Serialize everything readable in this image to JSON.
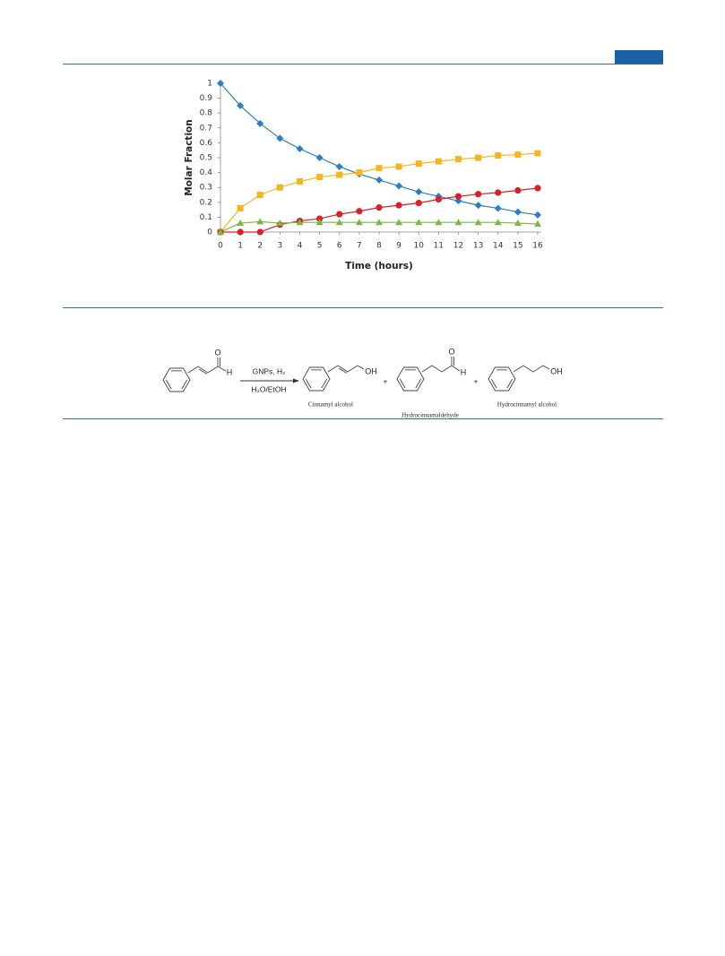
{
  "chart_data": {
    "type": "line",
    "x_label": "Time (hours)",
    "y_label": "Molar Fraction",
    "x": [
      0,
      1,
      2,
      3,
      4,
      5,
      6,
      7,
      8,
      9,
      10,
      11,
      12,
      13,
      14,
      15,
      16
    ],
    "series": [
      {
        "color": "#2a7fc1",
        "marker": "diamond",
        "values": [
          1,
          0.85,
          0.73,
          0.63,
          0.56,
          0.5,
          0.44,
          0.39,
          0.35,
          0.31,
          0.27,
          0.24,
          0.21,
          0.18,
          0.16,
          0.135,
          0.115
        ]
      },
      {
        "color": "#f7b51c",
        "marker": "square",
        "values": [
          0,
          0.16,
          0.25,
          0.3,
          0.34,
          0.37,
          0.385,
          0.4,
          0.43,
          0.44,
          0.46,
          0.475,
          0.49,
          0.5,
          0.515,
          0.52,
          0.53
        ]
      },
      {
        "color": "#d92027",
        "marker": "circle",
        "values": [
          0,
          0,
          0,
          0.05,
          0.075,
          0.09,
          0.12,
          0.14,
          0.165,
          0.18,
          0.195,
          0.22,
          0.24,
          0.255,
          0.265,
          0.28,
          0.295
        ]
      },
      {
        "color": "#7ab648",
        "marker": "triangle",
        "values": [
          0,
          0.06,
          0.07,
          0.06,
          0.065,
          0.065,
          0.065,
          0.065,
          0.065,
          0.065,
          0.065,
          0.065,
          0.065,
          0.065,
          0.065,
          0.06,
          0.055
        ]
      }
    ],
    "xlim": [
      0,
      16
    ],
    "xticks": [
      0,
      1,
      2,
      3,
      4,
      5,
      6,
      7,
      8,
      9,
      10,
      11,
      12,
      13,
      14,
      15,
      16
    ],
    "ylim": [
      0,
      1
    ],
    "yticks": [
      0,
      0.1,
      0.2,
      0.3,
      0.4,
      0.5,
      0.6,
      0.7,
      0.8,
      0.9,
      1
    ],
    "grid": false
  },
  "scheme": {
    "conditions": [
      "GNPs, H₂",
      "H₂O/EtOH"
    ],
    "atoms": {
      "oxygen": "O",
      "hydrogen": "H",
      "hydroxyl": "OH"
    },
    "plus": "+",
    "products": [
      "Cinnamyl alcohol",
      "Hydrocinnamaldehyde",
      "Hydrocinnamyl alcohol"
    ]
  }
}
